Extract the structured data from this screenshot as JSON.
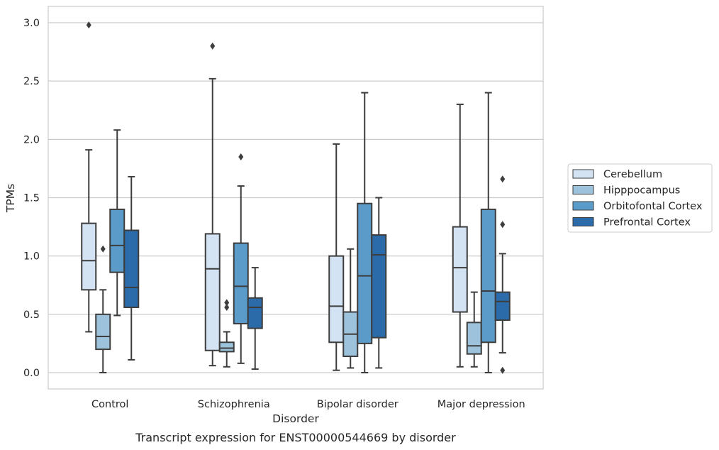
{
  "chart_data": {
    "type": "box",
    "caption": "Transcript expression for ENST00000544669 by disorder",
    "xlabel": "Disorder",
    "ylabel": "TPMs",
    "ylim": [
      -0.14,
      3.14
    ],
    "yticks": [
      "0.0",
      "0.5",
      "1.0",
      "1.5",
      "2.0",
      "2.5",
      "3.0"
    ],
    "grid": true,
    "legend_position": "right",
    "categories": [
      "Control",
      "Schizophrenia",
      "Bipolar disorder",
      "Major depression"
    ],
    "series": [
      {
        "name": "Cerebellum",
        "color": "#d4e3f3",
        "boxes": [
          {
            "whislo": 0.35,
            "q1": 0.71,
            "med": 0.96,
            "q3": 1.28,
            "whishi": 1.91,
            "fliers": [
              2.98
            ]
          },
          {
            "whislo": 0.06,
            "q1": 0.19,
            "med": 0.89,
            "q3": 1.19,
            "whishi": 2.52,
            "fliers": [
              2.8
            ]
          },
          {
            "whislo": 0.02,
            "q1": 0.26,
            "med": 0.57,
            "q3": 1.0,
            "whishi": 1.96,
            "fliers": []
          },
          {
            "whislo": 0.05,
            "q1": 0.52,
            "med": 0.9,
            "q3": 1.25,
            "whishi": 2.3,
            "fliers": []
          }
        ]
      },
      {
        "name": "Hipppocampus",
        "color": "#9dc3dc",
        "boxes": [
          {
            "whislo": 0.0,
            "q1": 0.2,
            "med": 0.31,
            "q3": 0.5,
            "whishi": 0.71,
            "fliers": [
              1.06
            ]
          },
          {
            "whislo": 0.05,
            "q1": 0.18,
            "med": 0.21,
            "q3": 0.26,
            "whishi": 0.35,
            "fliers": [
              0.56,
              0.6
            ]
          },
          {
            "whislo": 0.04,
            "q1": 0.14,
            "med": 0.33,
            "q3": 0.52,
            "whishi": 1.06,
            "fliers": []
          },
          {
            "whislo": 0.05,
            "q1": 0.16,
            "med": 0.23,
            "q3": 0.43,
            "whishi": 0.69,
            "fliers": []
          }
        ]
      },
      {
        "name": "Orbitofontal Cortex",
        "color": "#5a9bc9",
        "boxes": [
          {
            "whislo": 0.49,
            "q1": 0.86,
            "med": 1.09,
            "q3": 1.4,
            "whishi": 2.08,
            "fliers": []
          },
          {
            "whislo": 0.08,
            "q1": 0.42,
            "med": 0.74,
            "q3": 1.11,
            "whishi": 1.6,
            "fliers": [
              1.85
            ]
          },
          {
            "whislo": 0.0,
            "q1": 0.25,
            "med": 0.83,
            "q3": 1.45,
            "whishi": 2.4,
            "fliers": []
          },
          {
            "whislo": 0.0,
            "q1": 0.26,
            "med": 0.7,
            "q3": 1.4,
            "whishi": 2.4,
            "fliers": []
          }
        ]
      },
      {
        "name": "Prefrontal Cortex",
        "color": "#2b6ba9",
        "boxes": [
          {
            "whislo": 0.11,
            "q1": 0.56,
            "med": 0.73,
            "q3": 1.22,
            "whishi": 1.68,
            "fliers": []
          },
          {
            "whislo": 0.03,
            "q1": 0.38,
            "med": 0.56,
            "q3": 0.64,
            "whishi": 0.9,
            "fliers": []
          },
          {
            "whislo": 0.04,
            "q1": 0.3,
            "med": 1.01,
            "q3": 1.18,
            "whishi": 1.5,
            "fliers": []
          },
          {
            "whislo": 0.17,
            "q1": 0.45,
            "med": 0.61,
            "q3": 0.69,
            "whishi": 1.02,
            "fliers": [
              0.02,
              1.27,
              1.66
            ]
          }
        ]
      }
    ]
  }
}
